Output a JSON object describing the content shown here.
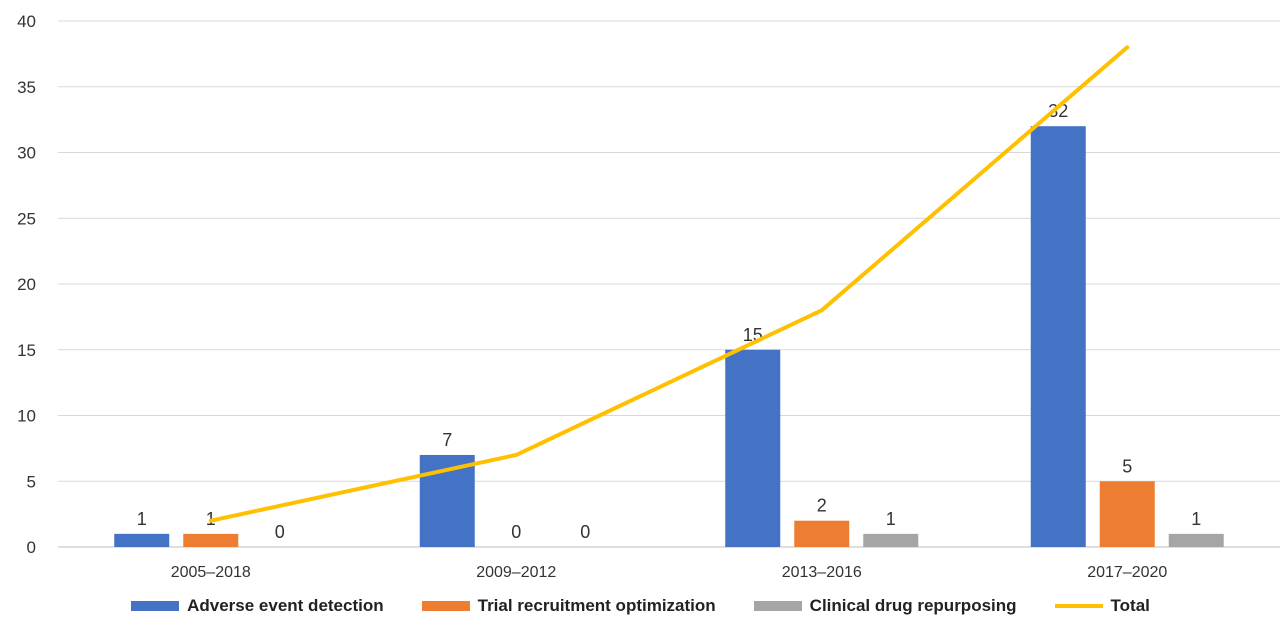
{
  "chart_data": {
    "type": "bar",
    "categories": [
      "2005–2018",
      "2009–2012",
      "2013–2016",
      "2017–2020"
    ],
    "series": [
      {
        "name": "Adverse event detection",
        "values": [
          1,
          7,
          15,
          32
        ],
        "color": "#4472C4"
      },
      {
        "name": "Trial recruitment optimization",
        "values": [
          1,
          0,
          2,
          5
        ],
        "color": "#ED7D31"
      },
      {
        "name": "Clinical drug repurposing",
        "values": [
          0,
          0,
          1,
          1
        ],
        "color": "#A5A5A5"
      }
    ],
    "line_series": {
      "name": "Total",
      "values": [
        2,
        7,
        18,
        38
      ],
      "color": "#FFC000"
    },
    "ylim": [
      0,
      40
    ],
    "yticks": [
      0,
      5,
      10,
      15,
      20,
      25,
      30,
      35,
      40
    ],
    "grid": true,
    "legend_position": "bottom",
    "data_labels": true
  }
}
